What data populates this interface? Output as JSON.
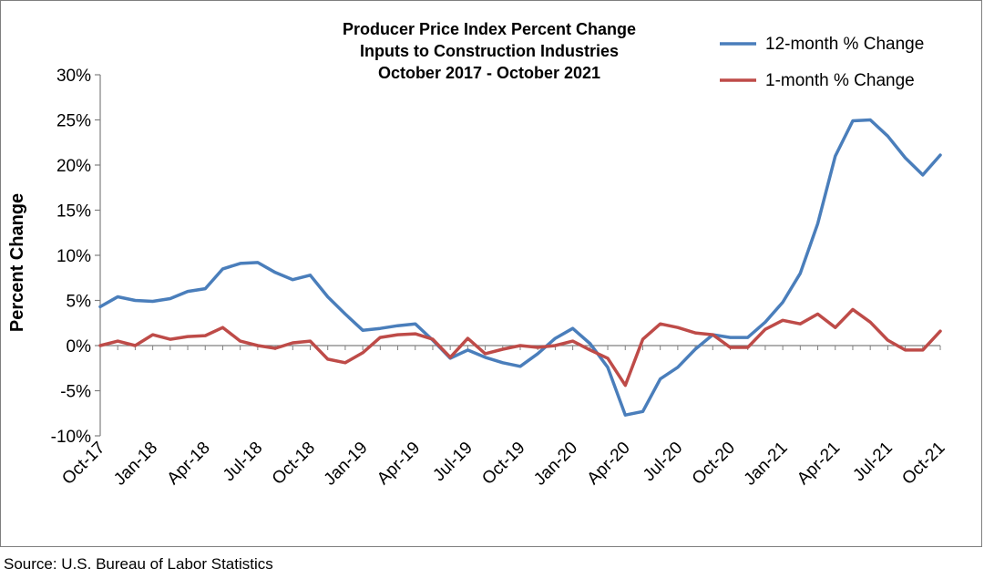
{
  "chart_data": {
    "type": "line",
    "title_lines": [
      "Producer Price Index Percent Change",
      "Inputs to Construction Industries",
      "October 2017 - October 2021"
    ],
    "ylabel": "Percent Change",
    "xlabel": "",
    "ylim": [
      -10,
      30
    ],
    "yticks": [
      -10,
      -5,
      0,
      5,
      10,
      15,
      20,
      25,
      30
    ],
    "ytick_labels": [
      "-10%",
      "-5%",
      "0%",
      "5%",
      "10%",
      "15%",
      "20%",
      "25%",
      "30%"
    ],
    "x_tick_labels": [
      "Oct-17",
      "Jan-18",
      "Apr-18",
      "Jul-18",
      "Oct-18",
      "Jan-19",
      "Apr-19",
      "Jul-19",
      "Oct-19",
      "Jan-20",
      "Apr-20",
      "Jul-20",
      "Oct-20",
      "Jan-21",
      "Apr-21",
      "Jul-21",
      "Oct-21"
    ],
    "months": [
      "Oct-17",
      "Nov-17",
      "Dec-17",
      "Jan-18",
      "Feb-18",
      "Mar-18",
      "Apr-18",
      "May-18",
      "Jun-18",
      "Jul-18",
      "Aug-18",
      "Sep-18",
      "Oct-18",
      "Nov-18",
      "Dec-18",
      "Jan-19",
      "Feb-19",
      "Mar-19",
      "Apr-19",
      "May-19",
      "Jun-19",
      "Jul-19",
      "Aug-19",
      "Sep-19",
      "Oct-19",
      "Nov-19",
      "Dec-19",
      "Jan-20",
      "Feb-20",
      "Mar-20",
      "Apr-20",
      "May-20",
      "Jun-20",
      "Jul-20",
      "Aug-20",
      "Sep-20",
      "Oct-20",
      "Nov-20",
      "Dec-20",
      "Jan-21",
      "Feb-21",
      "Mar-21",
      "Apr-21",
      "May-21",
      "Jun-21",
      "Jul-21",
      "Aug-21",
      "Sep-21",
      "Oct-21"
    ],
    "series": [
      {
        "name": "12-month % Change",
        "color": "#4a7ebb",
        "values": [
          4.3,
          5.4,
          5.0,
          4.9,
          5.2,
          6.0,
          6.3,
          8.5,
          9.1,
          9.2,
          8.1,
          7.3,
          7.8,
          5.4,
          3.5,
          1.7,
          1.9,
          2.2,
          2.4,
          0.6,
          -1.4,
          -0.5,
          -1.3,
          -1.9,
          -2.3,
          -0.9,
          0.8,
          1.9,
          0.2,
          -2.4,
          -7.7,
          -7.3,
          -3.7,
          -2.4,
          -0.4,
          1.2,
          0.9,
          0.9,
          2.6,
          4.8,
          8.0,
          13.5,
          21.0,
          24.9,
          25.0,
          23.2,
          20.8,
          18.9,
          21.1
        ]
      },
      {
        "name": "1-month % Change",
        "color": "#be4b48",
        "values": [
          0.0,
          0.5,
          0.0,
          1.2,
          0.7,
          1.0,
          1.1,
          2.0,
          0.5,
          0.0,
          -0.3,
          0.3,
          0.5,
          -1.5,
          -1.9,
          -0.8,
          0.9,
          1.2,
          1.3,
          0.7,
          -1.3,
          0.8,
          -0.9,
          -0.4,
          0.0,
          -0.2,
          0.0,
          0.5,
          -0.5,
          -1.4,
          -4.4,
          0.7,
          2.4,
          2.0,
          1.4,
          1.2,
          -0.2,
          -0.2,
          1.8,
          2.8,
          2.4,
          3.5,
          2.0,
          4.0,
          2.6,
          0.6,
          -0.5,
          -0.5,
          1.6
        ]
      }
    ],
    "legend_position": "top-right",
    "grid": false
  },
  "source": "Source: U.S. Bureau of Labor Statistics"
}
